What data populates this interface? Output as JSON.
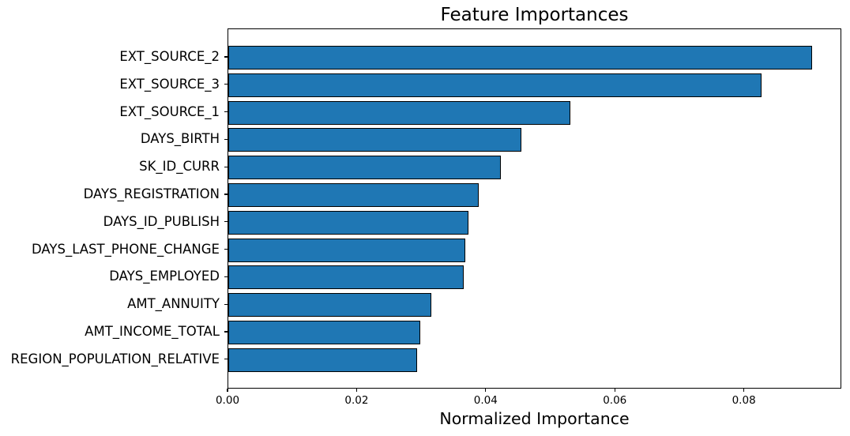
{
  "chart_data": {
    "type": "bar",
    "orientation": "horizontal",
    "title": "Feature Importances",
    "xlabel": "Normalized Importance",
    "ylabel": "",
    "categories": [
      "EXT_SOURCE_2",
      "EXT_SOURCE_3",
      "EXT_SOURCE_1",
      "DAYS_BIRTH",
      "SK_ID_CURR",
      "DAYS_REGISTRATION",
      "DAYS_ID_PUBLISH",
      "DAYS_LAST_PHONE_CHANGE",
      "DAYS_EMPLOYED",
      "AMT_ANNUITY",
      "AMT_INCOME_TOTAL",
      "REGION_POPULATION_RELATIVE"
    ],
    "values": [
      0.0905,
      0.0826,
      0.053,
      0.0454,
      0.0422,
      0.0388,
      0.0372,
      0.0367,
      0.0365,
      0.0315,
      0.0297,
      0.0292
    ],
    "xlim": [
      0,
      0.0951
    ],
    "xticks": [
      0.0,
      0.02,
      0.04,
      0.06,
      0.08
    ],
    "xtick_labels": [
      "0.00",
      "0.02",
      "0.04",
      "0.06",
      "0.08"
    ],
    "bar_color": "#1f77b4",
    "bar_edge_color": "#000000",
    "grid": false,
    "legend_position": "none",
    "background_color": "#ffffff"
  }
}
